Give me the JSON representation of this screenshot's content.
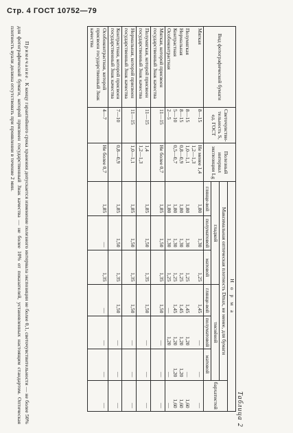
{
  "page": {
    "header": "Стр. 4 ГОСТ 10752—79"
  },
  "table": {
    "number": "Таблица 2",
    "headers": {
      "type": "Вид фотографической бумаги",
      "sensitivity": "Светочувстви-тельность S, ед. ГОСТ",
      "latitude": "Полезный интервал экспозиции Lg",
      "norm": "Н о р м а",
      "dmax": "Максимальная оптическая плотность Dmax, не менее, для бумаги",
      "smooth": "гладкой",
      "fine": "тиснёной",
      "velvet": "бархатистой",
      "glossy": "глянце-вой",
      "semimatte": "полуматовой",
      "matte": "матовой"
    },
    "rows": [
      {
        "type": "Мягкая\n\nПолумягкая\nНормальная\nКонтрастная\nОсобоконтрастная",
        "sensitivity": "8—15\n\n8—15\n8—15\n5—10\n2—5",
        "latitude": "Не менее 1,4\n1,2—1,3\n1,0—1,1\n0,8—0,9\n0,5—0,7",
        "s_glossy": "1,80\n\n1,80\n1,80\n1,80\n1,80",
        "s_semi": "1,30\n\n1,30\n1,30\n1,30\n1,30",
        "s_matte": "1,25\n\n1,25\n1,25\n1,25\n1,25",
        "f_glossy": "1,45\n\n1,45\n1,45\n1,45\n—",
        "f_semi": "—\n\n1,20\n1,20\n1,20\n1,20",
        "f_matte": "—\n\n—\n1,20\n1,20\n—",
        "velvet": "—\n\n1,60\n1,60\n1,60\n—"
      },
      {
        "type": "Мягкая, которой присвоен государственный Знак качества",
        "sensitivity": "11—15",
        "latitude": "Не более 0,7",
        "s_glossy": "1,85",
        "s_semi": "1,50",
        "s_matte": "1,35",
        "f_glossy": "1,50",
        "f_semi": "—",
        "f_matte": "—",
        "velvet": "—"
      },
      {
        "type": "Полумягкая, которой присвоен государственный Знак качества",
        "sensitivity": "11—15",
        "latitude": "1,4\n1,2—1,3",
        "s_glossy": "1,85",
        "s_semi": "1,50",
        "s_matte": "1,35",
        "f_glossy": "1,50",
        "f_semi": "—",
        "f_matte": "—",
        "velvet": "—"
      },
      {
        "type": "Нормальная, которой присвоен государственный Знак качества",
        "sensitivity": "11—15",
        "latitude": "1,0—1,1",
        "s_glossy": "1,85",
        "s_semi": "1,50",
        "s_matte": "1,35",
        "f_glossy": "1,50",
        "f_semi": "—",
        "f_matte": "—",
        "velvet": "—"
      },
      {
        "type": "Контрастная, которой присвоен государственный Знак качества",
        "sensitivity": "7—10",
        "latitude": "0,8—0,9",
        "s_glossy": "1,85",
        "s_semi": "1,50",
        "s_matte": "1,35",
        "f_glossy": "1,50",
        "f_semi": "—",
        "f_matte": "—",
        "velvet": "—"
      },
      {
        "type": "Особоконтрастная, которой присвоен государственный Знак качества",
        "sensitivity": "4—7",
        "latitude": "Не более 0,7",
        "s_glossy": "1,85",
        "s_semi": "—",
        "s_matte": "1,35",
        "f_glossy": "—",
        "f_semi": "—",
        "f_matte": "—",
        "velvet": "—"
      }
    ]
  },
  "note": {
    "lead": "Примечание.",
    "text": "К концу гарантийного срока хранения допускается изменение полезного интервала экспозиции не более 0,1, светочувствительности — не более 50% для фотографической бумаги, которой присвоен государственный Знак качества — не более 10% от показателей, установленных настоящим стандартом. Оптическая плотность вуали должна отсутствовать при проявлении в течение 2 мин."
  }
}
